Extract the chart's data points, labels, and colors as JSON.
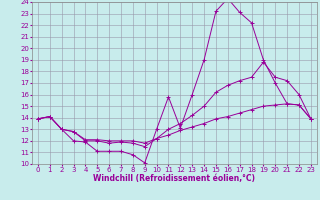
{
  "xlabel": "Windchill (Refroidissement éolien,°C)",
  "bg_color": "#c8ecec",
  "line_color": "#990099",
  "xlim": [
    -0.5,
    23.5
  ],
  "ylim": [
    10,
    24
  ],
  "xticks": [
    0,
    1,
    2,
    3,
    4,
    5,
    6,
    7,
    8,
    9,
    10,
    11,
    12,
    13,
    14,
    15,
    16,
    17,
    18,
    19,
    20,
    21,
    22,
    23
  ],
  "yticks": [
    10,
    11,
    12,
    13,
    14,
    15,
    16,
    17,
    18,
    19,
    20,
    21,
    22,
    23,
    24
  ],
  "line1_x": [
    0,
    1,
    2,
    3,
    4,
    5,
    6,
    7,
    8,
    9,
    10,
    11,
    12,
    13,
    14,
    15,
    16,
    17,
    18,
    19,
    20,
    21,
    22,
    23
  ],
  "line1_y": [
    13.9,
    14.1,
    13.0,
    12.0,
    11.9,
    11.1,
    11.1,
    11.1,
    10.8,
    10.1,
    13.0,
    15.8,
    13.1,
    16.0,
    19.0,
    23.2,
    24.3,
    23.1,
    22.2,
    19.0,
    17.0,
    15.2,
    15.1,
    13.9
  ],
  "line2_x": [
    0,
    1,
    2,
    3,
    4,
    5,
    6,
    7,
    8,
    9,
    10,
    11,
    12,
    13,
    14,
    15,
    16,
    17,
    18,
    19,
    20,
    21,
    22,
    23
  ],
  "line2_y": [
    13.9,
    14.1,
    13.0,
    12.8,
    12.0,
    12.0,
    11.8,
    11.9,
    11.8,
    11.5,
    12.2,
    13.0,
    13.5,
    14.2,
    15.0,
    16.2,
    16.8,
    17.2,
    17.5,
    18.8,
    17.5,
    17.2,
    16.0,
    13.9
  ],
  "line3_x": [
    0,
    1,
    2,
    3,
    4,
    5,
    6,
    7,
    8,
    9,
    10,
    11,
    12,
    13,
    14,
    15,
    16,
    17,
    18,
    19,
    20,
    21,
    22,
    23
  ],
  "line3_y": [
    13.9,
    14.1,
    13.0,
    12.8,
    12.1,
    12.1,
    12.0,
    12.0,
    12.0,
    11.8,
    12.2,
    12.5,
    12.9,
    13.2,
    13.5,
    13.9,
    14.1,
    14.4,
    14.7,
    15.0,
    15.1,
    15.2,
    15.1,
    13.9
  ],
  "xlabel_fontsize": 5.5,
  "tick_fontsize": 5
}
